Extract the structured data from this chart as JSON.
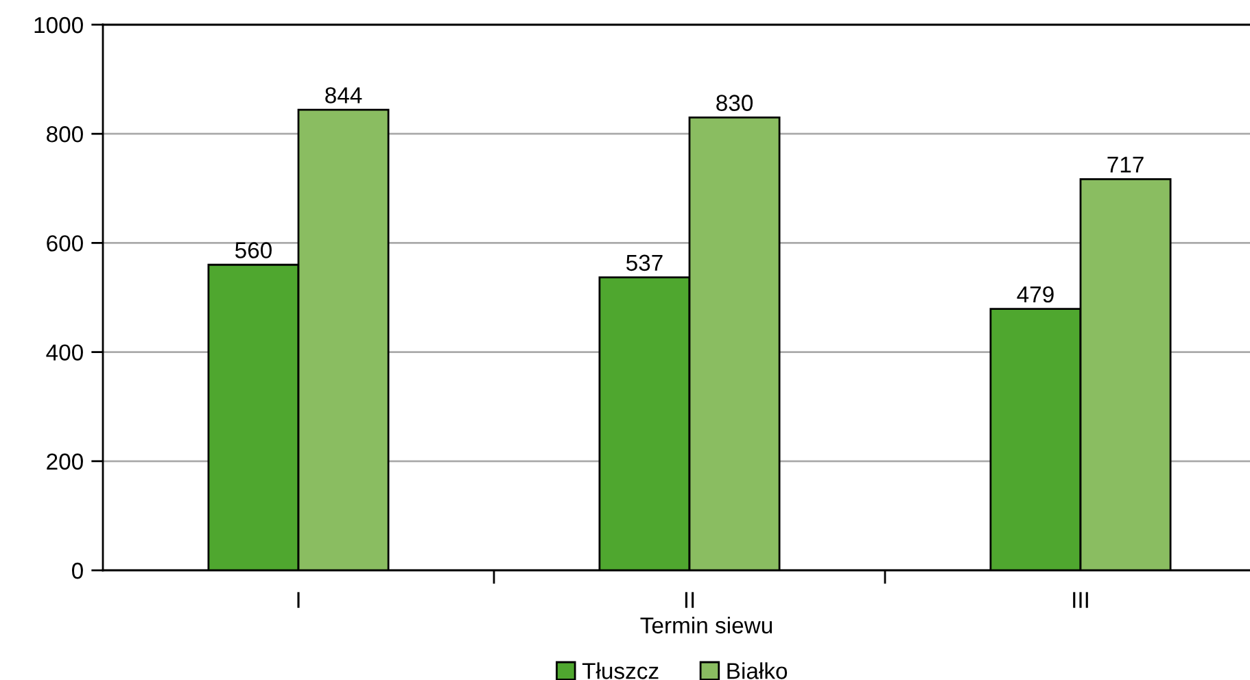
{
  "chart_data": {
    "type": "bar",
    "xlabel": "Termin siewu",
    "categories": [
      "I",
      "II",
      "III"
    ],
    "series": [
      {
        "name": "Tłuszcz",
        "color": "#4fa72f",
        "values": [
          560,
          537,
          479
        ]
      },
      {
        "name": "Białko",
        "color": "#8abd61",
        "values": [
          844,
          830,
          717
        ]
      }
    ],
    "ylim": [
      0,
      1000
    ],
    "yticks": [
      0,
      200,
      400,
      600,
      800,
      1000
    ],
    "grid": "y",
    "legend": "bottom",
    "data_labels": true
  }
}
